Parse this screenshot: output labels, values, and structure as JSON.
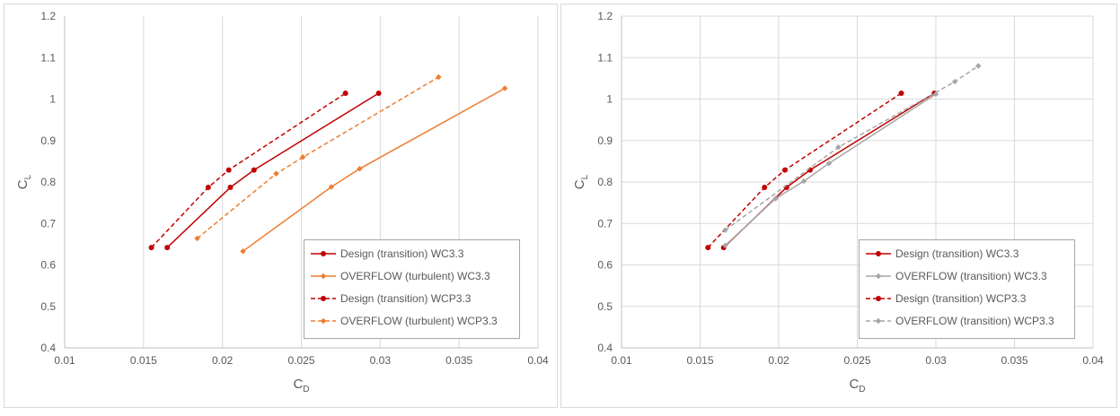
{
  "chart_data": [
    {
      "type": "line",
      "xlabel": "C",
      "xlabel_sub": "D",
      "ylabel": "C",
      "ylabel_sub": "L",
      "xlim": [
        0.01,
        0.04
      ],
      "ylim": [
        0.4,
        1.2
      ],
      "xticks": [
        0.01,
        0.015,
        0.02,
        0.025,
        0.03,
        0.035,
        0.04
      ],
      "xtick_labels": [
        "0.01",
        "0.015",
        "0.02",
        "0.025",
        "0.03",
        "0.035",
        "0.04"
      ],
      "yticks": [
        0.4,
        0.5,
        0.6,
        0.7,
        0.8,
        0.9,
        1.0,
        1.1,
        1.2
      ],
      "ytick_labels": [
        "0.4",
        "0.5",
        "0.6",
        "0.7",
        "0.8",
        "0.9",
        "1",
        "1.1",
        "1.2"
      ],
      "grid": "vertical",
      "legend_position": "bottom-right",
      "series": [
        {
          "name": "Design (transition) WC3.3",
          "color": "#c00000",
          "dash": "solid",
          "marker": "circle",
          "points": [
            [
              0.0165,
              0.642
            ],
            [
              0.0205,
              0.787
            ],
            [
              0.022,
              0.829
            ],
            [
              0.0299,
              1.014
            ]
          ]
        },
        {
          "name": "OVERFLOW (turbulent) WC3.3",
          "color": "#ed7d31",
          "dash": "solid",
          "marker": "diamond",
          "points": [
            [
              0.0213,
              0.633
            ],
            [
              0.0269,
              0.788
            ],
            [
              0.0287,
              0.832
            ],
            [
              0.0379,
              1.026
            ]
          ]
        },
        {
          "name": "Design (transition) WCP3.3",
          "color": "#c00000",
          "dash": "dashed",
          "marker": "circle",
          "points": [
            [
              0.0155,
              0.642
            ],
            [
              0.0191,
              0.787
            ],
            [
              0.0204,
              0.829
            ],
            [
              0.0278,
              1.014
            ]
          ]
        },
        {
          "name": "OVERFLOW (turbulent) WCP3.3",
          "color": "#ed7d31",
          "dash": "dashed",
          "marker": "diamond",
          "points": [
            [
              0.0184,
              0.664
            ],
            [
              0.0234,
              0.82
            ],
            [
              0.0251,
              0.86
            ],
            [
              0.0337,
              1.053
            ]
          ]
        }
      ]
    },
    {
      "type": "line",
      "xlabel": "C",
      "xlabel_sub": "D",
      "ylabel": "C",
      "ylabel_sub": "L",
      "xlim": [
        0.01,
        0.04
      ],
      "ylim": [
        0.4,
        1.2
      ],
      "xticks": [
        0.01,
        0.015,
        0.02,
        0.025,
        0.03,
        0.035,
        0.04
      ],
      "xtick_labels": [
        "0.01",
        "0.015",
        "0.02",
        "0.025",
        "0.03",
        "0.035",
        "0.04"
      ],
      "yticks": [
        0.4,
        0.5,
        0.6,
        0.7,
        0.8,
        0.9,
        1.0,
        1.1,
        1.2
      ],
      "ytick_labels": [
        "0.4",
        "0.5",
        "0.6",
        "0.7",
        "0.8",
        "0.9",
        "1",
        "1.1",
        "1.2"
      ],
      "grid": "major",
      "legend_position": "bottom-right",
      "series": [
        {
          "name": "Design (transition) WC3.3",
          "color": "#c00000",
          "dash": "solid",
          "marker": "circle",
          "points": [
            [
              0.0165,
              0.642
            ],
            [
              0.0205,
              0.787
            ],
            [
              0.022,
              0.829
            ],
            [
              0.0299,
              1.014
            ]
          ]
        },
        {
          "name": "OVERFLOW (transition) WC3.3",
          "color": "#a6a6a6",
          "dash": "solid",
          "marker": "diamond",
          "points": [
            [
              0.0166,
              0.647
            ],
            [
              0.0198,
              0.76
            ],
            [
              0.0216,
              0.802
            ],
            [
              0.0232,
              0.845
            ],
            [
              0.03,
              1.012
            ]
          ]
        },
        {
          "name": "Design (transition) WCP3.3",
          "color": "#c00000",
          "dash": "dashed",
          "marker": "circle",
          "points": [
            [
              0.0155,
              0.642
            ],
            [
              0.0191,
              0.787
            ],
            [
              0.0204,
              0.829
            ],
            [
              0.0278,
              1.014
            ]
          ]
        },
        {
          "name": "OVERFLOW (transition) WCP3.3",
          "color": "#a6a6a6",
          "dash": "dashed",
          "marker": "diamond",
          "points": [
            [
              0.0166,
              0.684
            ],
            [
              0.0238,
              0.884
            ],
            [
              0.0312,
              1.042
            ],
            [
              0.0327,
              1.08
            ]
          ]
        }
      ]
    }
  ]
}
